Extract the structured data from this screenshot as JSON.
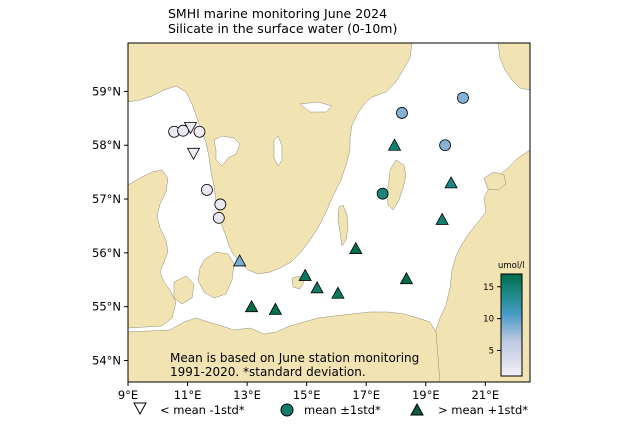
{
  "title_line1": "SMHI marine monitoring June 2024",
  "title_line2": "Silicate in the surface water (0-10m)",
  "colorbar": {
    "unit": "umol/l",
    "ticks": [
      5,
      10,
      15
    ],
    "range": [
      1,
      17
    ],
    "colors": [
      "#f4eff7",
      "#3d94c0",
      "#006d4c"
    ]
  },
  "note_line1": "Mean is based on June station monitoring",
  "note_line2": "1991-2020. *standard deviation.",
  "legend": {
    "below": "< mean -1std*",
    "mean": "mean ±1std*",
    "above": "> mean +1std*"
  },
  "map": {
    "lon_range": [
      9,
      22.5
    ],
    "lat_range": [
      53.6,
      59.9
    ],
    "lon_ticks": [
      "9°E",
      "11°E",
      "13°E",
      "15°E",
      "17°E",
      "19°E",
      "21°E"
    ],
    "lat_ticks": [
      "54°N",
      "55°N",
      "56°N",
      "57°N",
      "58°N",
      "59°N"
    ],
    "land_color": "#f2e3b3",
    "sea_color": "#ffffff"
  },
  "stations": [
    {
      "lon": 10.55,
      "lat": 58.25,
      "type": "circle",
      "value": 1.8
    },
    {
      "lon": 10.85,
      "lat": 58.27,
      "type": "circle",
      "value": 1.8
    },
    {
      "lon": 11.1,
      "lat": 58.33,
      "type": "down",
      "value": 1.5
    },
    {
      "lon": 11.4,
      "lat": 58.25,
      "type": "circle",
      "value": 1.5
    },
    {
      "lon": 11.2,
      "lat": 57.85,
      "type": "down",
      "value": 1.5
    },
    {
      "lon": 11.65,
      "lat": 57.17,
      "type": "circle",
      "value": 2.0
    },
    {
      "lon": 12.1,
      "lat": 56.9,
      "type": "circle",
      "value": 2.2
    },
    {
      "lon": 12.05,
      "lat": 56.65,
      "type": "circle",
      "value": 2.4
    },
    {
      "lon": 12.75,
      "lat": 55.85,
      "type": "up",
      "value": 9.0
    },
    {
      "lon": 13.15,
      "lat": 55.0,
      "type": "up",
      "value": 17.0
    },
    {
      "lon": 13.95,
      "lat": 54.95,
      "type": "up",
      "value": 17.0
    },
    {
      "lon": 14.95,
      "lat": 55.58,
      "type": "up",
      "value": 16.0
    },
    {
      "lon": 15.35,
      "lat": 55.35,
      "type": "up",
      "value": 15.5
    },
    {
      "lon": 16.05,
      "lat": 55.25,
      "type": "up",
      "value": 16.0
    },
    {
      "lon": 16.65,
      "lat": 56.08,
      "type": "up",
      "value": 17.0
    },
    {
      "lon": 18.35,
      "lat": 55.52,
      "type": "up",
      "value": 17.0
    },
    {
      "lon": 17.55,
      "lat": 57.1,
      "type": "circle",
      "value": 14.5
    },
    {
      "lon": 17.95,
      "lat": 58.0,
      "type": "up",
      "value": 15.0
    },
    {
      "lon": 18.2,
      "lat": 58.6,
      "type": "circle",
      "value": 8.5
    },
    {
      "lon": 19.65,
      "lat": 58.0,
      "type": "circle",
      "value": 8.5
    },
    {
      "lon": 20.25,
      "lat": 58.88,
      "type": "circle",
      "value": 8.5
    },
    {
      "lon": 19.85,
      "lat": 57.3,
      "type": "up",
      "value": 14.0
    },
    {
      "lon": 19.55,
      "lat": 56.62,
      "type": "up",
      "value": 15.0
    }
  ]
}
